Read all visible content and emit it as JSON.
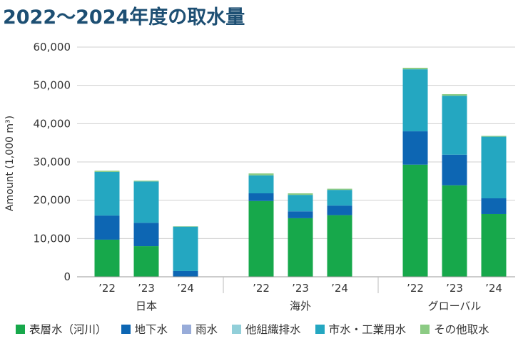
{
  "title": "2022〜2024年度の取水量",
  "chart_data": {
    "type": "bar",
    "stacked": true,
    "ylabel": "Amount (1,000 m³)",
    "ylim": [
      0,
      60000
    ],
    "yticks": [
      0,
      10000,
      20000,
      30000,
      40000,
      50000,
      60000
    ],
    "ytick_labels": [
      "0",
      "10,000",
      "20,000",
      "30,000",
      "40,000",
      "50,000",
      "60,000"
    ],
    "groups": [
      "日本",
      "海外",
      "グローバル"
    ],
    "categories": [
      "’22",
      "’23",
      "’24",
      "’22",
      "’23",
      "’24",
      "’22",
      "’23",
      "’24"
    ],
    "grid": true,
    "legend_position": "bottom",
    "series": [
      {
        "name": "表層水（河川）",
        "color": "#17a84b",
        "values": [
          9700,
          8000,
          0,
          19800,
          15300,
          16100,
          29300,
          23900,
          16400
        ]
      },
      {
        "name": "地下水",
        "color": "#0d66b3",
        "values": [
          6300,
          6100,
          1500,
          2000,
          1800,
          2500,
          8700,
          8000,
          4100
        ]
      },
      {
        "name": "雨水",
        "color": "#98acd9",
        "values": [
          0,
          0,
          0,
          0,
          0,
          0,
          0,
          0,
          0
        ]
      },
      {
        "name": "他組織排水",
        "color": "#92cfd9",
        "values": [
          0,
          0,
          0,
          0,
          0,
          0,
          0,
          0,
          0
        ]
      },
      {
        "name": "市水・工業用水",
        "color": "#24a7c1",
        "values": [
          11400,
          10800,
          11600,
          4700,
          4300,
          4100,
          16200,
          15400,
          16100
        ]
      },
      {
        "name": "その他取水",
        "color": "#8ccb84",
        "values": [
          300,
          200,
          100,
          500,
          400,
          300,
          400,
          400,
          200
        ]
      }
    ]
  }
}
